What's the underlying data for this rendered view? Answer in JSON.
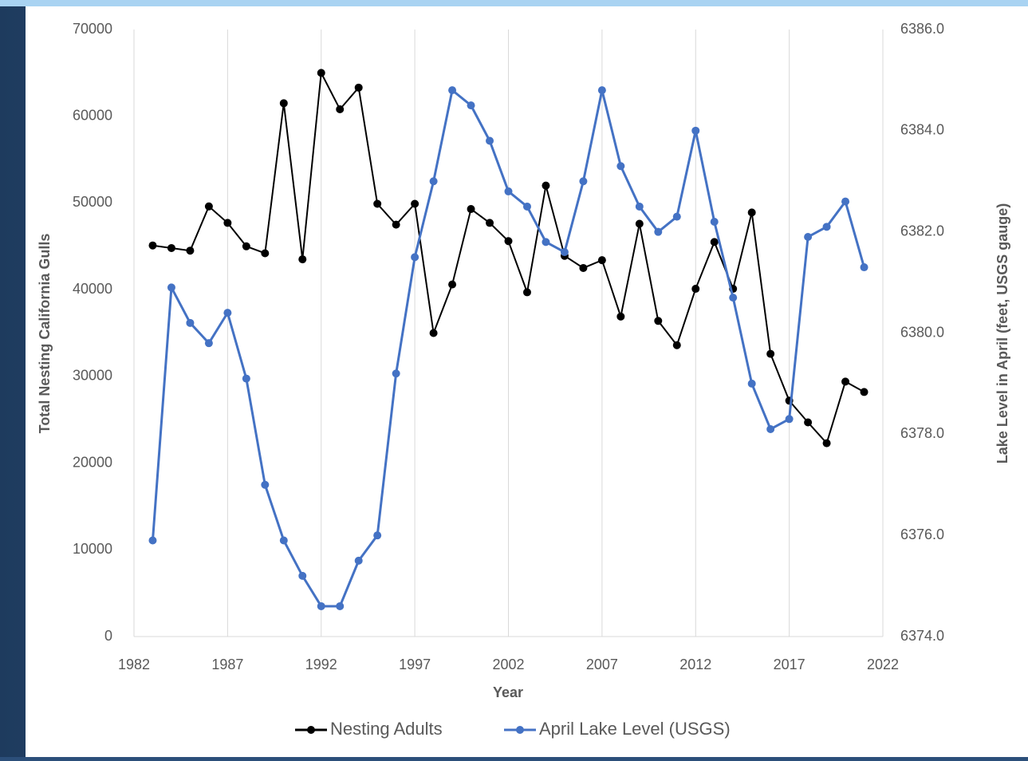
{
  "chart_data": {
    "type": "line",
    "x_label": "Year",
    "y_label": "Total Nesting California Gulls",
    "y2_label": "Lake Level in April (feet, USGS gauge)",
    "x": [
      1983,
      1984,
      1985,
      1986,
      1987,
      1988,
      1989,
      1990,
      1991,
      1992,
      1993,
      1994,
      1995,
      1996,
      1997,
      1998,
      1999,
      2000,
      2001,
      2002,
      2003,
      2004,
      2005,
      2006,
      2007,
      2008,
      2009,
      2010,
      2011,
      2012,
      2013,
      2014,
      2015,
      2016,
      2017,
      2018,
      2019,
      2020,
      2021
    ],
    "series": [
      {
        "name": "Nesting Adults",
        "color": "#000000",
        "values": [
          45100,
          44800,
          44500,
          49600,
          47700,
          45000,
          44200,
          61500,
          43500,
          65000,
          60800,
          63300,
          49900,
          47500,
          49900,
          35000,
          40600,
          49300,
          47700,
          45600,
          39700,
          52000,
          43900,
          42500,
          43400,
          36900,
          47600,
          36400,
          33600,
          40100,
          45500,
          40100,
          48900,
          32600,
          27200,
          24700,
          22300,
          29400,
          28200
        ]
      },
      {
        "name": "April Lake Level (USGS)",
        "color": "#4472c4",
        "axis": "y2",
        "values": [
          6375.9,
          6380.9,
          6380.2,
          6379.8,
          6380.4,
          6379.1,
          6377.0,
          6375.9,
          6375.2,
          6374.6,
          6374.6,
          6375.5,
          6376.0,
          6379.2,
          6381.5,
          6383.0,
          6384.8,
          6384.5,
          6383.8,
          6382.8,
          6382.5,
          6381.8,
          6381.6,
          6383.0,
          6384.8,
          6383.3,
          6382.5,
          6382.0,
          6382.3,
          6384.0,
          6382.2,
          6380.7,
          6379.0,
          6378.1,
          6378.3,
          6381.9,
          6382.1,
          6382.6,
          6381.3
        ]
      }
    ],
    "xlim": [
      1982,
      2022
    ],
    "xticks": [
      1982,
      1987,
      1992,
      1997,
      2002,
      2007,
      2012,
      2017,
      2022
    ],
    "ylim": [
      0,
      70000
    ],
    "yticks": [
      0,
      10000,
      20000,
      30000,
      40000,
      50000,
      60000,
      70000
    ],
    "y2lim": [
      6374,
      6386
    ],
    "y2ticks": [
      {
        "value": 6374,
        "label": "6374.0"
      },
      {
        "value": 6376,
        "label": "6376.0"
      },
      {
        "value": 6378,
        "label": "6378.0"
      },
      {
        "value": 6380,
        "label": "6380.0"
      },
      {
        "value": 6382,
        "label": "6382.0"
      },
      {
        "value": 6384,
        "label": "6384.0"
      },
      {
        "value": 6386,
        "label": "6386.0"
      }
    ],
    "grid": "x",
    "legend": "bottom"
  }
}
